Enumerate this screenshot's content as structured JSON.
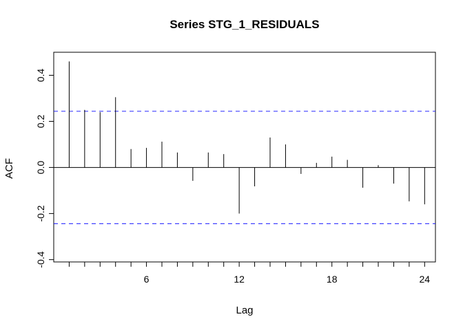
{
  "chart_data": {
    "type": "bar",
    "title": "Series  STG_1_RESIDUALS",
    "xlabel": "Lag",
    "ylabel": "ACF",
    "x": [
      1,
      2,
      3,
      4,
      5,
      6,
      7,
      8,
      9,
      10,
      11,
      12,
      13,
      14,
      15,
      16,
      17,
      18,
      19,
      20,
      21,
      22,
      23,
      24
    ],
    "values": [
      0.46,
      0.25,
      0.24,
      0.305,
      0.08,
      0.085,
      0.112,
      0.065,
      -0.058,
      0.065,
      0.058,
      -0.2,
      -0.082,
      0.13,
      0.1,
      -0.028,
      0.02,
      0.047,
      0.033,
      -0.088,
      0.01,
      -0.07,
      -0.147,
      -0.16
    ],
    "xlim": [
      0,
      24.7
    ],
    "ylim": [
      -0.41,
      0.5
    ],
    "x_ticks": [
      6,
      12,
      18,
      24
    ],
    "y_ticks": [
      -0.4,
      -0.2,
      0.0,
      0.2,
      0.4
    ],
    "y_tick_labels": [
      "-0.4",
      "-0.2",
      "0.0",
      "0.2",
      "0.4"
    ],
    "confidence_bound": 0.244,
    "bar_color": "#000000",
    "ci_color": "#0000ff"
  }
}
